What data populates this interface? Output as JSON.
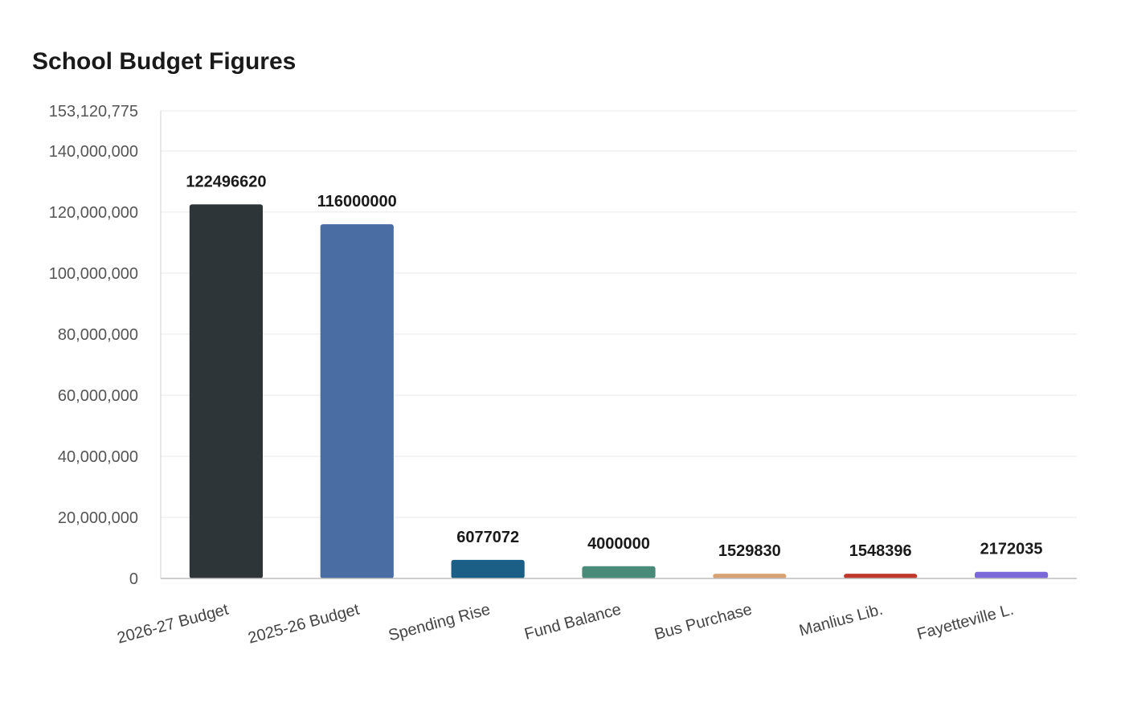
{
  "chart_data": {
    "type": "bar",
    "title": "School Budget Figures",
    "xlabel": "",
    "ylabel": "",
    "categories": [
      "2026-27 Budget",
      "2025-26 Budget",
      "Spending Rise",
      "Fund Balance",
      "Bus Purchase",
      "Manlius Lib.",
      "Fayetteville L."
    ],
    "values": [
      122496620,
      116000000,
      6077072,
      4000000,
      1529830,
      1548396,
      2172035
    ],
    "data_labels": [
      "122496620",
      "116000000",
      "6077072",
      "4000000",
      "1529830",
      "1548396",
      "2172035"
    ],
    "colors": [
      "#2e3538",
      "#4a6da3",
      "#1b5f87",
      "#4a8a78",
      "#d9a275",
      "#c0392b",
      "#7b68d9"
    ],
    "ylim": [
      0,
      153120775
    ],
    "yticks": [
      0,
      20000000,
      40000000,
      60000000,
      80000000,
      100000000,
      120000000,
      140000000,
      153120775
    ],
    "ytick_labels": [
      "0",
      "20,000,000",
      "40,000,000",
      "60,000,000",
      "80,000,000",
      "100,000,000",
      "120,000,000",
      "140,000,000",
      "153,120,775"
    ],
    "grid": true,
    "legend": "none"
  }
}
